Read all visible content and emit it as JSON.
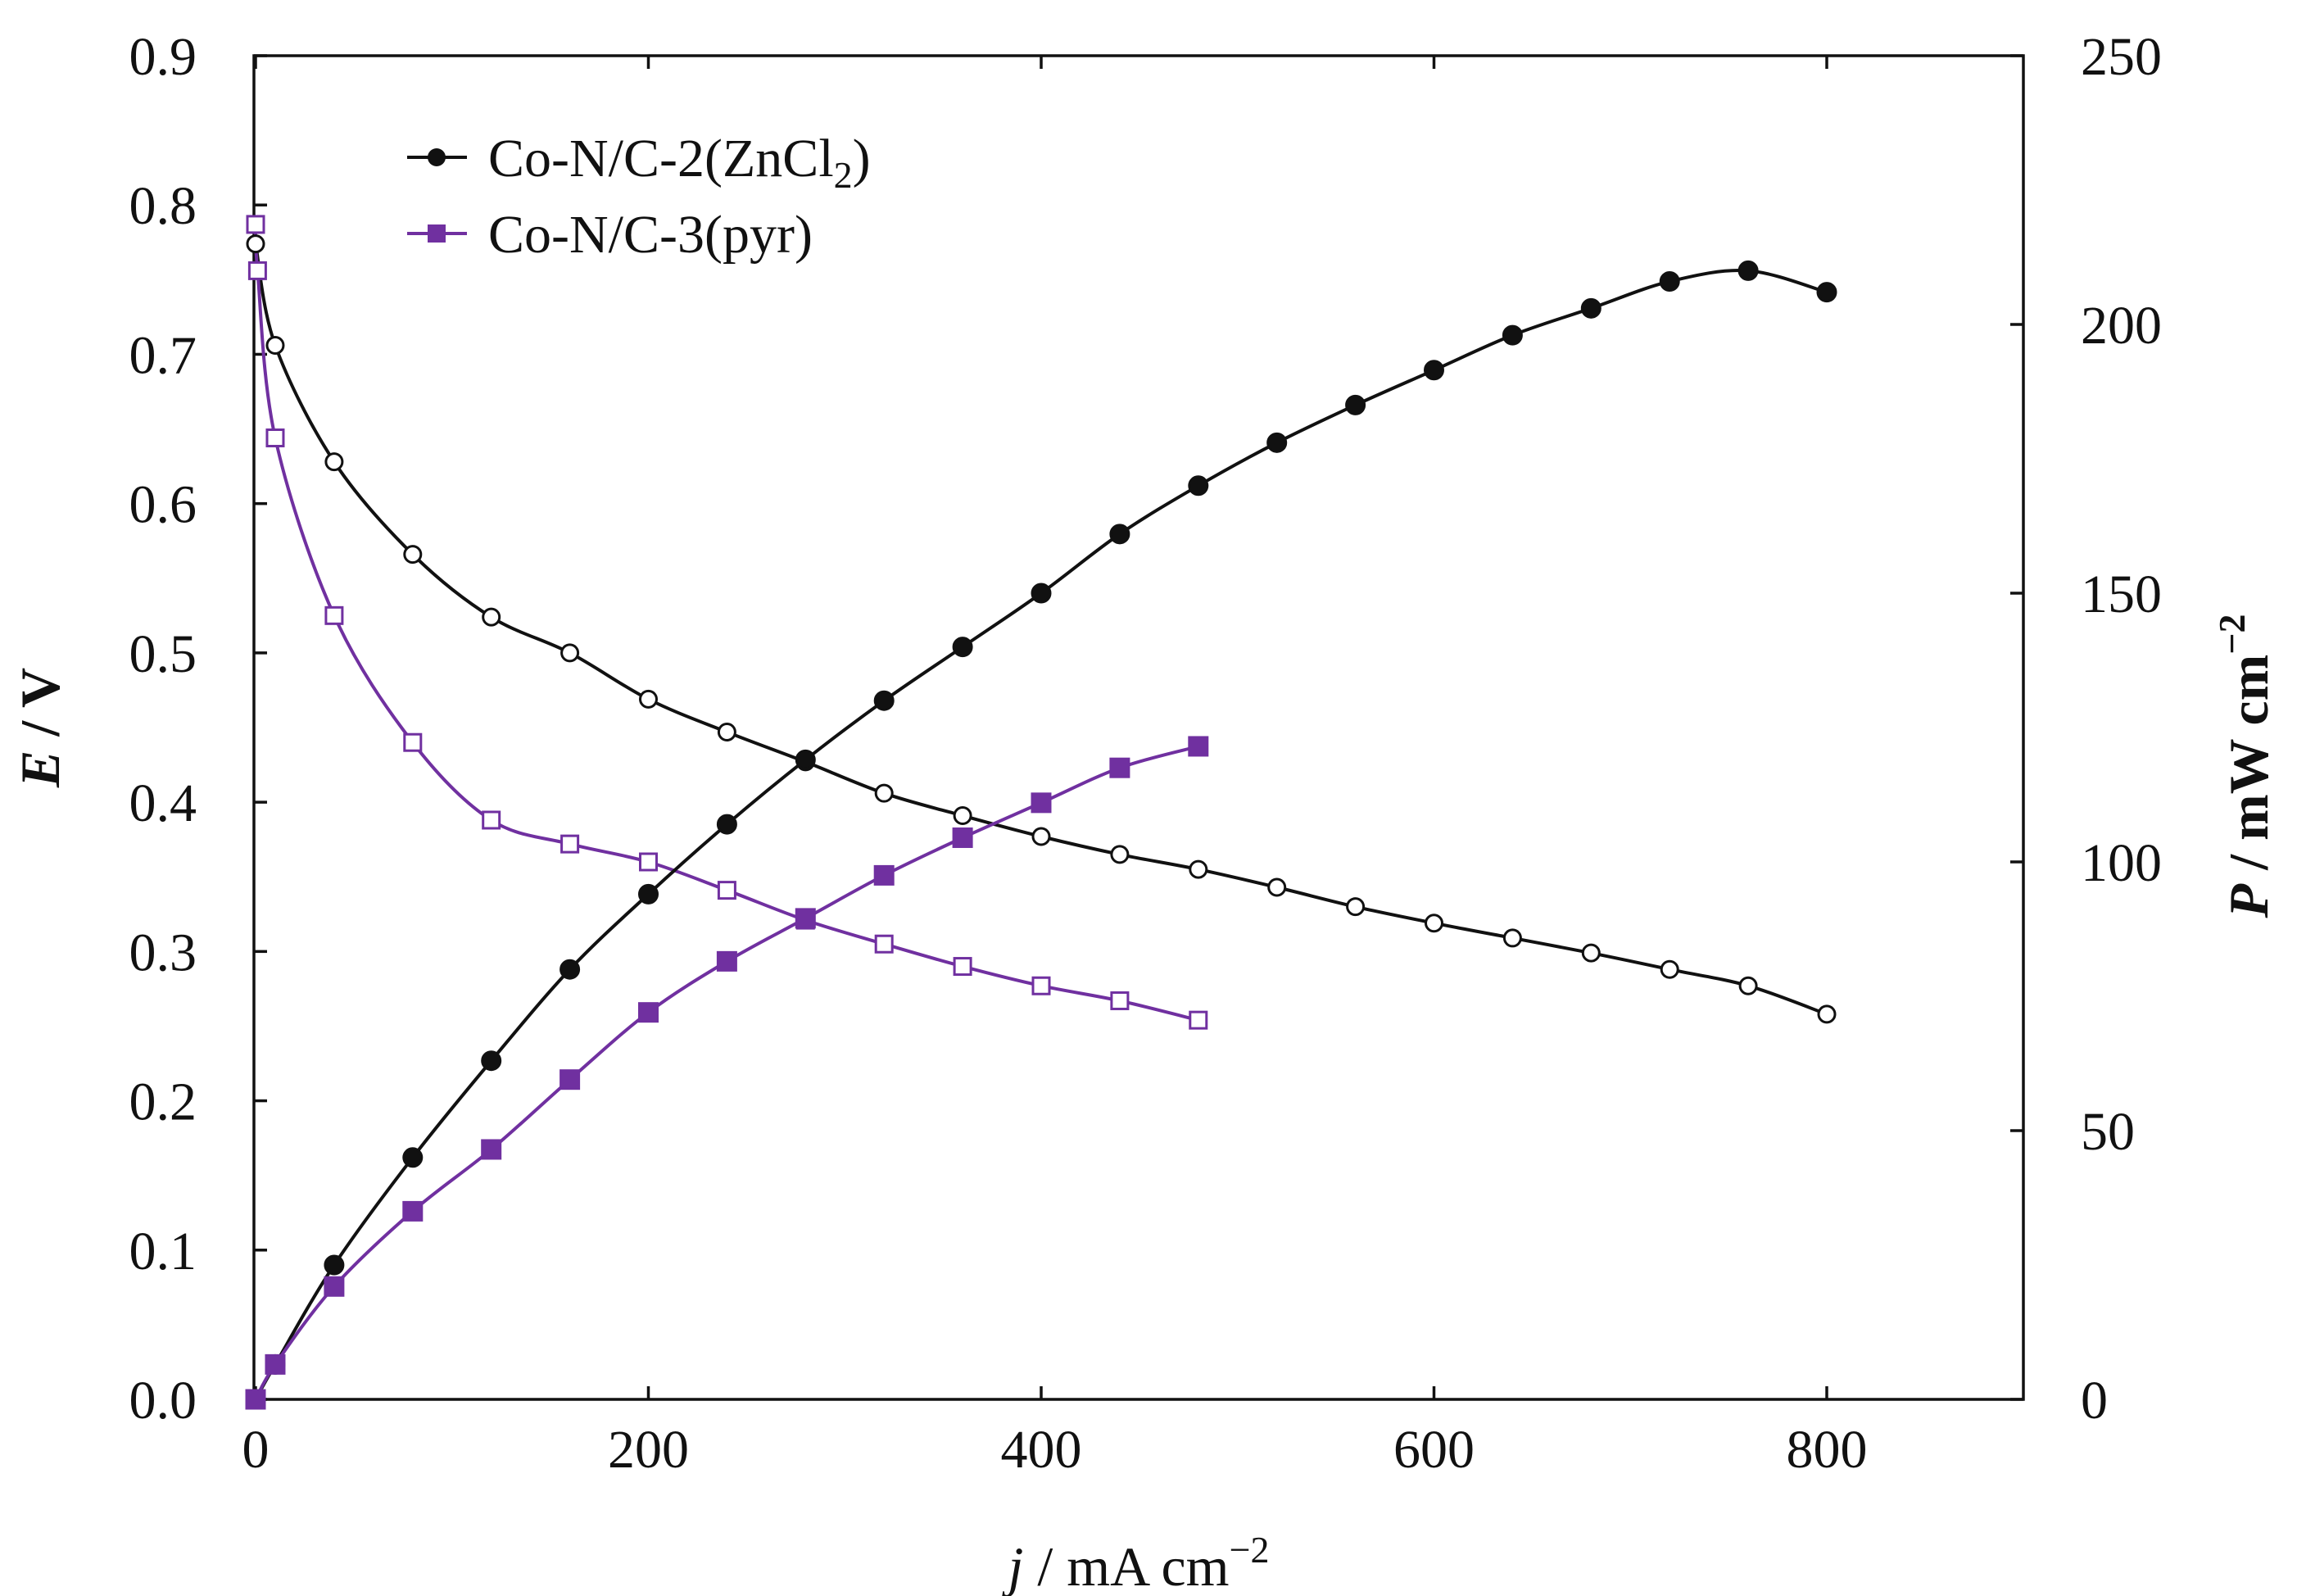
{
  "chart_data": {
    "type": "line",
    "colors": {
      "co_n_c_2": "#111111",
      "co_n_c_3": "#7030A0"
    },
    "x_axis": {
      "label_italic": "j",
      "label_rest": " / mA cm",
      "label_sup": "−2",
      "range": [
        0,
        900
      ],
      "ticks": [
        0,
        200,
        400,
        600,
        800
      ],
      "tick_labels": [
        "0",
        "200",
        "400",
        "600",
        "800"
      ]
    },
    "y_left": {
      "label_italic": "E",
      "label_rest": " / V",
      "range": [
        0,
        0.9
      ],
      "ticks": [
        0,
        0.1,
        0.2,
        0.3,
        0.4,
        0.5,
        0.6,
        0.7,
        0.8,
        0.9
      ],
      "tick_labels": [
        "0.0",
        "0.1",
        "0.2",
        "0.3",
        "0.4",
        "0.5",
        "0.6",
        "0.7",
        "0.8",
        "0.9"
      ]
    },
    "y_right": {
      "label_italic": "P",
      "label_rest": " / mW cm",
      "label_sup": "−2",
      "range": [
        0,
        250
      ],
      "ticks": [
        0,
        50,
        100,
        150,
        200,
        250
      ],
      "tick_labels": [
        "0",
        "50",
        "100",
        "150",
        "200",
        "250"
      ]
    },
    "legend": {
      "placement": "top-left",
      "entries": [
        {
          "key": "co_n_c_2",
          "label_main": "Co-N/C-2(ZnCl",
          "label_sub": "2",
          "label_end": ")",
          "marker": "circle"
        },
        {
          "key": "co_n_c_3",
          "label_main": "Co-N/C-3(pyr)",
          "label_sub": "",
          "label_end": "",
          "marker": "square"
        }
      ]
    },
    "series": [
      {
        "name": "Co-N/C-2(ZnCl2) polarization",
        "key": "co_n_c_2",
        "axis": "left",
        "marker": "circle",
        "filled": false,
        "x": [
          0,
          10,
          40,
          80,
          120,
          160,
          200,
          240,
          280,
          320,
          360,
          400,
          440,
          480,
          520,
          560,
          600,
          640,
          680,
          720,
          760,
          800
        ],
        "y": [
          0.774,
          0.706,
          0.628,
          0.566,
          0.524,
          0.5,
          0.469,
          0.447,
          0.427,
          0.406,
          0.391,
          0.377,
          0.365,
          0.355,
          0.343,
          0.33,
          0.319,
          0.309,
          0.299,
          0.288,
          0.277,
          0.258
        ]
      },
      {
        "name": "Co-N/C-3(pyr) polarization",
        "key": "co_n_c_3",
        "axis": "left",
        "marker": "square",
        "filled": false,
        "x": [
          0,
          1,
          10,
          40,
          80,
          120,
          160,
          200,
          240,
          280,
          320,
          360,
          400,
          440,
          480
        ],
        "y": [
          0.787,
          0.756,
          0.644,
          0.525,
          0.44,
          0.388,
          0.372,
          0.36,
          0.341,
          0.321,
          0.305,
          0.29,
          0.277,
          0.267,
          0.254
        ]
      },
      {
        "name": "Co-N/C-2(ZnCl2) power density",
        "key": "co_n_c_2",
        "axis": "right",
        "marker": "circle",
        "filled": true,
        "x": [
          0,
          10,
          40,
          80,
          120,
          160,
          200,
          240,
          280,
          320,
          360,
          400,
          440,
          480,
          520,
          560,
          600,
          640,
          680,
          720,
          760,
          800
        ],
        "y": [
          0,
          6.5,
          25,
          45,
          63,
          80,
          94,
          107,
          119,
          130,
          140,
          150,
          161,
          170,
          178,
          185,
          191.5,
          198,
          203,
          208,
          210,
          206
        ]
      },
      {
        "name": "Co-N/C-3(pyr) power density",
        "key": "co_n_c_3",
        "axis": "right",
        "marker": "square",
        "filled": true,
        "x": [
          0,
          10,
          40,
          80,
          120,
          160,
          200,
          240,
          280,
          320,
          360,
          400,
          440,
          480
        ],
        "y": [
          0,
          6.5,
          21,
          35,
          46.5,
          59.5,
          72,
          81.5,
          89.5,
          97.5,
          104.5,
          111,
          117.5,
          121.5
        ]
      }
    ]
  }
}
